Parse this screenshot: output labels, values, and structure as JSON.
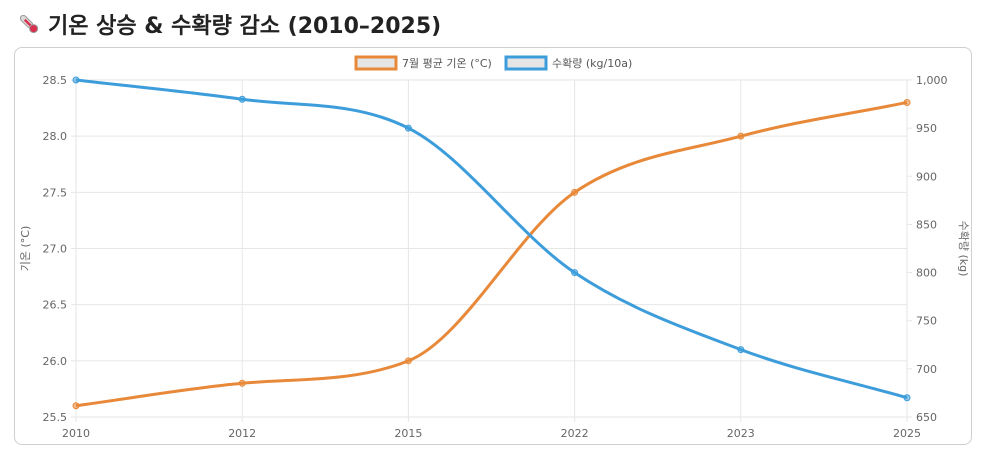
{
  "page": {
    "icon": "thermometer-icon",
    "title": "기온 상승 & 수확량 감소 (2010–2025)"
  },
  "chart_data": {
    "type": "line",
    "title": "기온 상승 & 수확량 감소 (2010–2025)",
    "categories": [
      "2010",
      "2012",
      "2015",
      "2022",
      "2023",
      "2025"
    ],
    "series": [
      {
        "name": "7월 평균 기온 (°C)",
        "axis": "left",
        "color": "#e8893a",
        "values": [
          25.6,
          25.8,
          26.0,
          27.5,
          28.0,
          28.3
        ]
      },
      {
        "name": "수확량 (kg/10a)",
        "axis": "right",
        "color": "#3d9ddb",
        "values": [
          1000,
          980,
          950,
          800,
          720,
          670
        ]
      }
    ],
    "y_left": {
      "label": "기온 (°C)",
      "range": [
        25.5,
        28.5
      ],
      "ticks": [
        "25.5",
        "26.0",
        "26.5",
        "27.0",
        "27.5",
        "28.0",
        "28.5"
      ]
    },
    "y_right": {
      "label": "수확량 (kg)",
      "range": [
        650,
        1000
      ],
      "ticks": [
        "650",
        "700",
        "750",
        "800",
        "850",
        "900",
        "950",
        "1,000"
      ]
    },
    "legend_position": "top-center",
    "grid": true
  }
}
